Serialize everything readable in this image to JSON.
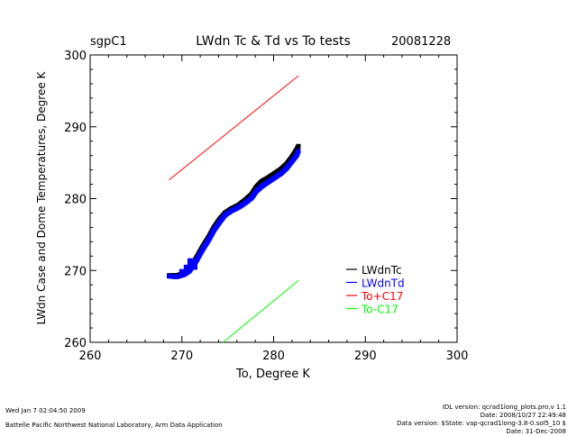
{
  "chart_data": {
    "type": "scatter",
    "site": "sgpC1",
    "title": "LWdn Tc & Td vs To tests",
    "date": "20081228",
    "xlabel": "To, Degree K",
    "ylabel": "LWdn Case and Dome Temperatures, Degree K",
    "xlim": [
      260,
      300
    ],
    "ylim": [
      260,
      300
    ],
    "xticks": [
      "260",
      "270",
      "280",
      "290",
      "300"
    ],
    "yticks": [
      "260",
      "270",
      "280",
      "290",
      "300"
    ],
    "legend_position": "lower-right",
    "series": [
      {
        "name": "LWdnTc",
        "color": "#000000",
        "style": "markers",
        "points": [
          [
            268.6,
            269.3
          ],
          [
            269.5,
            269.3
          ],
          [
            270.2,
            269.6
          ],
          [
            270.8,
            270.1
          ],
          [
            271.2,
            270.9
          ],
          [
            271.6,
            271.8
          ],
          [
            272.3,
            273.4
          ],
          [
            272.9,
            274.6
          ],
          [
            273.5,
            276.0
          ],
          [
            274.1,
            277.1
          ],
          [
            274.7,
            278.0
          ],
          [
            275.4,
            278.6
          ],
          [
            276.2,
            279.1
          ],
          [
            276.9,
            279.8
          ],
          [
            277.6,
            280.6
          ],
          [
            278.1,
            281.6
          ],
          [
            278.7,
            282.4
          ],
          [
            279.4,
            282.9
          ],
          [
            280.1,
            283.5
          ],
          [
            280.8,
            284.1
          ],
          [
            281.4,
            284.8
          ],
          [
            282.0,
            285.8
          ],
          [
            282.5,
            286.8
          ],
          [
            282.7,
            287.3
          ]
        ]
      },
      {
        "name": "LWdnTd",
        "color": "#0000ff",
        "style": "markers",
        "points": [
          [
            268.6,
            269.2
          ],
          [
            269.4,
            269.1
          ],
          [
            270.2,
            269.4
          ],
          [
            270.8,
            269.9
          ],
          [
            271.2,
            270.6
          ],
          [
            271.6,
            271.4
          ],
          [
            272.3,
            273.0
          ],
          [
            272.9,
            274.2
          ],
          [
            273.5,
            275.6
          ],
          [
            274.1,
            276.7
          ],
          [
            274.7,
            277.7
          ],
          [
            275.4,
            278.3
          ],
          [
            276.2,
            278.8
          ],
          [
            276.9,
            279.4
          ],
          [
            277.6,
            280.1
          ],
          [
            278.1,
            281.0
          ],
          [
            278.7,
            281.7
          ],
          [
            279.4,
            282.3
          ],
          [
            280.1,
            282.9
          ],
          [
            280.8,
            283.5
          ],
          [
            281.4,
            284.2
          ],
          [
            282.0,
            285.2
          ],
          [
            282.5,
            286.0
          ],
          [
            282.7,
            286.6
          ]
        ]
      },
      {
        "name": "To+C17",
        "color": "#ff0000",
        "style": "line",
        "points": [
          [
            268.6,
            282.6
          ],
          [
            282.7,
            297.1
          ]
        ]
      },
      {
        "name": "To-C17",
        "color": "#00ff00",
        "style": "line",
        "points": [
          [
            274.5,
            260.0
          ],
          [
            282.7,
            268.6
          ]
        ]
      }
    ]
  },
  "footer": {
    "timestamp": "Wed Jan  7 02:04:50 2009",
    "organization": "Battelle Pacific Northwest National Laboratory, Arm Data Application",
    "idl_version": "IDL version: qcrad1long_plots.pro,v 1.1",
    "proc_date": "Date: 2008/10/27 22:49:48",
    "data_version": "Data version: $State: vap-qcrad1long-3.8-0.sol5_10 $",
    "data_date": "Date: 31-Dec-2008"
  }
}
